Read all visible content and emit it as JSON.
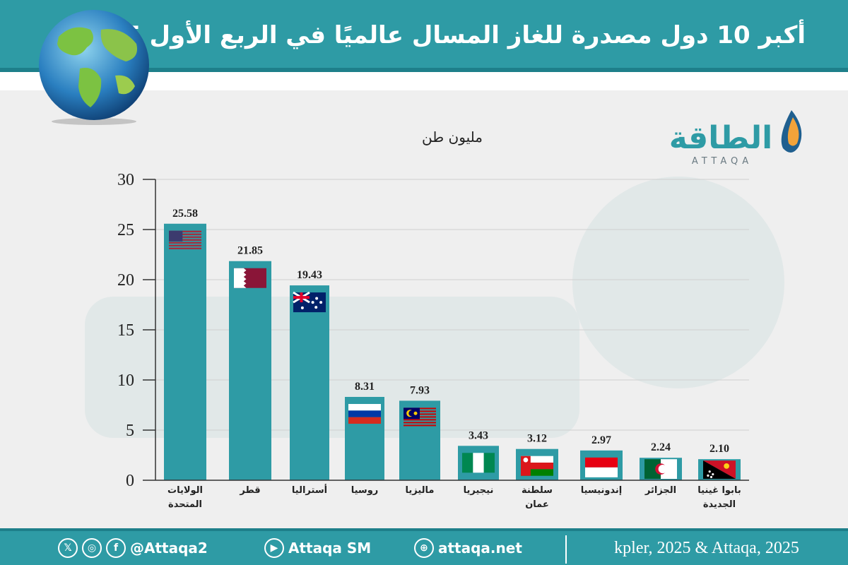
{
  "header": {
    "title": "أكبر 10 دول مصدرة للغاز المسال عالميًا في الربع الأول 2025"
  },
  "logo": {
    "arabic": "الطاقة",
    "latin": "ATTAQA"
  },
  "colors": {
    "bar": "#2e9ba5",
    "band": "#2e9ba5",
    "band_dark": "#1e7f8a"
  },
  "chart_data": {
    "type": "bar",
    "ylabel": "مليون طن",
    "ylim": [
      0,
      30
    ],
    "yticks": [
      0,
      5,
      10,
      15,
      20,
      25,
      30
    ],
    "categories": [
      {
        "line1": "الولايات",
        "line2": "المتحدة",
        "flag": "usa"
      },
      {
        "line1": "قطر",
        "line2": "",
        "flag": "qatar"
      },
      {
        "line1": "أستراليا",
        "line2": "",
        "flag": "australia"
      },
      {
        "line1": "روسيا",
        "line2": "",
        "flag": "russia"
      },
      {
        "line1": "ماليزيا",
        "line2": "",
        "flag": "malaysia"
      },
      {
        "line1": "نيجيريا",
        "line2": "",
        "flag": "nigeria"
      },
      {
        "line1": "سلطنة",
        "line2": "عمان",
        "flag": "oman"
      },
      {
        "line1": "إندونيسيا",
        "line2": "",
        "flag": "indonesia"
      },
      {
        "line1": "الجزائر",
        "line2": "",
        "flag": "algeria"
      },
      {
        "line1": "بابوا غينيا",
        "line2": "الجديدة",
        "flag": "png"
      }
    ],
    "values": [
      25.58,
      21.85,
      19.43,
      8.31,
      7.93,
      3.43,
      3.12,
      2.97,
      2.24,
      2.1
    ],
    "value_labels": [
      "25.58",
      "21.85",
      "19.43",
      "8.31",
      "7.93",
      "3.43",
      "3.12",
      "2.97",
      "2.24",
      "2.10"
    ]
  },
  "footer": {
    "icons": [
      "x-icon",
      "instagram-icon",
      "facebook-icon"
    ],
    "handle": "@Attaqa2",
    "youtube": "Attaqa SM",
    "website": "attaqa.net",
    "source": "kpler, 2025 & Attaqa, 2025"
  }
}
